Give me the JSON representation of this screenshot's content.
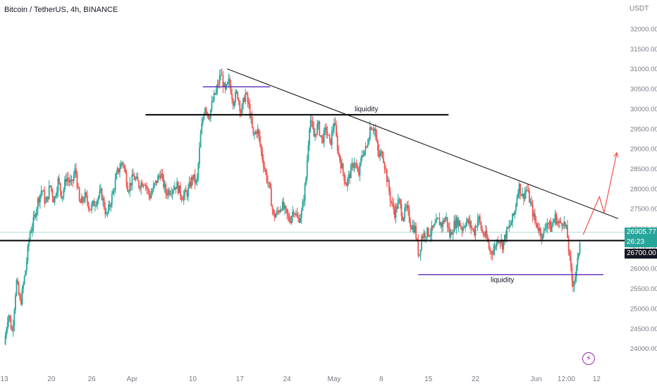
{
  "symbol_title": "Bitcoin / TetherUS, 4h, BINANCE",
  "currency": "USDT",
  "price_tags": {
    "last_price": "26905.77",
    "countdown": "26:23",
    "level": "26700.00"
  },
  "annotations": {
    "liquidity_top": "liquidity",
    "liquidity_bottom": "liquidity"
  },
  "colors": {
    "up": "#26a69a",
    "down": "#ef5350",
    "level_line": "#000000",
    "liquidity_line": "#673ab7",
    "trend_line": "#000000",
    "projection": "#ef5350"
  },
  "chart_data": {
    "type": "candlestick",
    "title": "Bitcoin / TetherUS, 4h, BINANCE",
    "ylabel": "USDT",
    "ylim": [
      23700,
      32500
    ],
    "y_ticks": [
      24000,
      24500,
      25000,
      25500,
      26000,
      26500,
      27000,
      27500,
      28000,
      28500,
      29000,
      29500,
      30000,
      30500,
      31000,
      31500,
      32000
    ],
    "y_tick_labels": [
      "24000.00",
      "24500.00",
      "25000.00",
      "25500.00",
      "26000.00",
      "26500.00",
      "27000.00",
      "27500.00",
      "28000.00",
      "28500.00",
      "29000.00",
      "29500.00",
      "30000.00",
      "30500.00",
      "31000.00",
      "31500.00",
      "32000.00"
    ],
    "x_ticks": [
      "13",
      "20",
      "26",
      "Apr",
      "10",
      "17",
      "24",
      "May",
      "8",
      "15",
      "22",
      "Jun",
      "12:00",
      "12"
    ],
    "x_tick_days": [
      0,
      7,
      13,
      19,
      28,
      35,
      42,
      49,
      56,
      63,
      70,
      79,
      83.5,
      88
    ],
    "grid": false,
    "price_path": [
      [
        0.0,
        24100
      ],
      [
        0.6,
        24900
      ],
      [
        1.2,
        24400
      ],
      [
        1.8,
        25700
      ],
      [
        2.4,
        25100
      ],
      [
        3.2,
        26000
      ],
      [
        3.8,
        26900
      ],
      [
        4.4,
        27200
      ],
      [
        5.0,
        27700
      ],
      [
        5.6,
        28000
      ],
      [
        6.2,
        27600
      ],
      [
        6.8,
        28100
      ],
      [
        7.4,
        27700
      ],
      [
        8.0,
        28200
      ],
      [
        8.6,
        27800
      ],
      [
        9.2,
        28300
      ],
      [
        10.0,
        28100
      ],
      [
        10.6,
        28500
      ],
      [
        11.2,
        27600
      ],
      [
        12.0,
        27800
      ],
      [
        12.8,
        27500
      ],
      [
        13.6,
        27700
      ],
      [
        14.4,
        27900
      ],
      [
        15.2,
        27300
      ],
      [
        16.0,
        27800
      ],
      [
        16.8,
        28400
      ],
      [
        17.6,
        28700
      ],
      [
        18.4,
        28000
      ],
      [
        19.2,
        28300
      ],
      [
        20.0,
        28100
      ],
      [
        20.8,
        28200
      ],
      [
        21.6,
        27800
      ],
      [
        22.4,
        28100
      ],
      [
        23.2,
        28400
      ],
      [
        24.0,
        27900
      ],
      [
        24.8,
        28000
      ],
      [
        25.6,
        28100
      ],
      [
        26.4,
        27800
      ],
      [
        27.2,
        27900
      ],
      [
        28.0,
        28300
      ],
      [
        28.6,
        28100
      ],
      [
        29.2,
        29400
      ],
      [
        29.8,
        30100
      ],
      [
        30.4,
        29800
      ],
      [
        31.0,
        30200
      ],
      [
        31.6,
        30500
      ],
      [
        32.2,
        30900
      ],
      [
        32.8,
        30400
      ],
      [
        33.4,
        30700
      ],
      [
        34.0,
        30200
      ],
      [
        34.6,
        30400
      ],
      [
        35.2,
        29900
      ],
      [
        35.8,
        30400
      ],
      [
        36.4,
        30000
      ],
      [
        37.0,
        29300
      ],
      [
        37.6,
        29500
      ],
      [
        38.2,
        28900
      ],
      [
        38.8,
        28400
      ],
      [
        39.4,
        28000
      ],
      [
        40.0,
        27300
      ],
      [
        40.6,
        27400
      ],
      [
        41.2,
        27600
      ],
      [
        41.8,
        27400
      ],
      [
        42.4,
        27200
      ],
      [
        43.0,
        27500
      ],
      [
        43.6,
        27200
      ],
      [
        44.2,
        27400
      ],
      [
        44.8,
        28200
      ],
      [
        45.4,
        29800
      ],
      [
        46.0,
        29300
      ],
      [
        46.6,
        29600
      ],
      [
        47.2,
        29200
      ],
      [
        47.8,
        29500
      ],
      [
        48.4,
        29100
      ],
      [
        49.0,
        29700
      ],
      [
        49.6,
        28900
      ],
      [
        50.2,
        28500
      ],
      [
        50.8,
        28100
      ],
      [
        51.4,
        28400
      ],
      [
        52.0,
        28700
      ],
      [
        52.6,
        28300
      ],
      [
        53.2,
        28900
      ],
      [
        53.8,
        29000
      ],
      [
        54.4,
        29600
      ],
      [
        55.0,
        29500
      ],
      [
        55.6,
        28800
      ],
      [
        56.2,
        28900
      ],
      [
        56.8,
        28300
      ],
      [
        57.4,
        27700
      ],
      [
        58.0,
        27400
      ],
      [
        58.6,
        27700
      ],
      [
        59.2,
        27300
      ],
      [
        59.8,
        27500
      ],
      [
        60.4,
        27100
      ],
      [
        61.0,
        27000
      ],
      [
        61.6,
        26300
      ],
      [
        62.0,
        26800
      ],
      [
        62.6,
        26900
      ],
      [
        63.2,
        26900
      ],
      [
        63.8,
        27000
      ],
      [
        64.4,
        27200
      ],
      [
        65.0,
        27100
      ],
      [
        65.6,
        27300
      ],
      [
        66.2,
        26800
      ],
      [
        66.8,
        27100
      ],
      [
        67.4,
        27200
      ],
      [
        68.0,
        27000
      ],
      [
        68.6,
        27200
      ],
      [
        69.2,
        27100
      ],
      [
        69.8,
        26900
      ],
      [
        70.4,
        27300
      ],
      [
        71.0,
        26900
      ],
      [
        71.6,
        26800
      ],
      [
        72.2,
        26400
      ],
      [
        72.8,
        26500
      ],
      [
        73.4,
        26800
      ],
      [
        74.0,
        26600
      ],
      [
        74.6,
        26900
      ],
      [
        75.2,
        27100
      ],
      [
        75.8,
        27400
      ],
      [
        76.4,
        28100
      ],
      [
        77.0,
        27800
      ],
      [
        77.6,
        28000
      ],
      [
        78.2,
        27600
      ],
      [
        78.8,
        27200
      ],
      [
        79.4,
        27000
      ],
      [
        80.0,
        26800
      ],
      [
        80.6,
        27200
      ],
      [
        81.2,
        27000
      ],
      [
        81.8,
        27300
      ],
      [
        82.4,
        27100
      ],
      [
        83.0,
        27200
      ],
      [
        83.6,
        26900
      ],
      [
        84.0,
        26200
      ],
      [
        84.4,
        25600
      ],
      [
        84.8,
        25800
      ],
      [
        85.2,
        26200
      ],
      [
        85.6,
        26900
      ]
    ],
    "horizontal_levels": [
      {
        "price": 26700,
        "from_day": -1,
        "to_day": 93,
        "label": ""
      },
      {
        "price": 29850,
        "from_day": 21,
        "to_day": 66,
        "label": "liquidity"
      },
      {
        "price": 30550,
        "from_day": 29.5,
        "to_day": 39.5,
        "label": ""
      },
      {
        "price": 25850,
        "from_day": 61.5,
        "to_day": 89,
        "label": "liquidity"
      }
    ],
    "last_price": 26905.77,
    "trend_line": [
      [
        33.1,
        31000
      ],
      [
        91.2,
        27250
      ]
    ],
    "projection_path": [
      [
        86.0,
        26850
      ],
      [
        88.4,
        27800
      ],
      [
        89.1,
        27400
      ],
      [
        91.0,
        28900
      ]
    ]
  }
}
